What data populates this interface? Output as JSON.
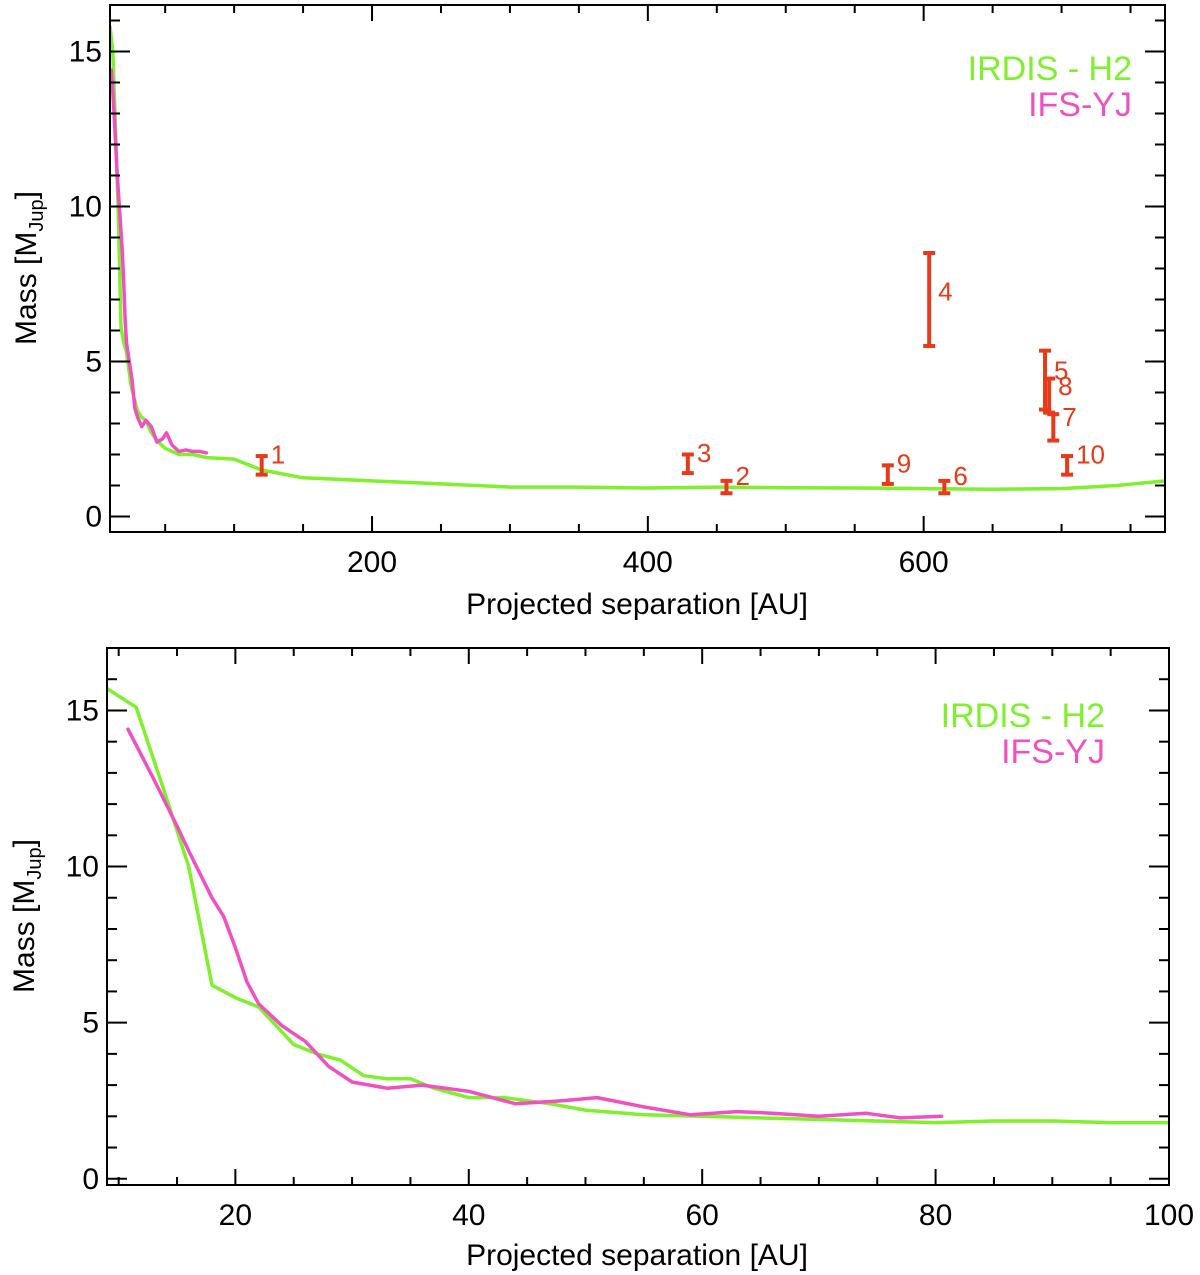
{
  "chart_data": [
    {
      "type": "line",
      "xlabel": "Projected separation [AU]",
      "ylabel": "Mass [M",
      "ylabel_sub": "Jup",
      "ylabel_close": "]",
      "xlim": [
        10,
        775
      ],
      "ylim": [
        -0.5,
        16.5
      ],
      "xticks": [
        200,
        400,
        600
      ],
      "xticks_minor_step": 50,
      "yticks": [
        0,
        5,
        10,
        15
      ],
      "yticks_minor_step": 1,
      "legend_position": "top-right",
      "series": [
        {
          "name": "IRDIS - H2",
          "color": "#7ef02c",
          "x": [
            10,
            12,
            14,
            16,
            18,
            20,
            22,
            25,
            27,
            30,
            33,
            36,
            40,
            45,
            50,
            55,
            60,
            70,
            80,
            100,
            120,
            150,
            200,
            250,
            300,
            350,
            400,
            450,
            500,
            550,
            600,
            650,
            700,
            740,
            775
          ],
          "y": [
            15.8,
            15,
            12.5,
            9.8,
            6.1,
            5.6,
            5.3,
            4.3,
            3.9,
            3.4,
            3.2,
            3.1,
            2.7,
            2.4,
            2.2,
            2.1,
            2.0,
            2.0,
            1.9,
            1.85,
            1.5,
            1.25,
            1.15,
            1.05,
            0.95,
            0.95,
            0.92,
            0.95,
            0.93,
            0.92,
            0.9,
            0.88,
            0.9,
            1.0,
            1.15
          ]
        },
        {
          "name": "IFS-YJ",
          "color": "#f050c0",
          "x": [
            11,
            13,
            15,
            16,
            18,
            19,
            20,
            21,
            22,
            24,
            26,
            28,
            30,
            33,
            36,
            40,
            44,
            48,
            51,
            55,
            60,
            65,
            70,
            75,
            80
          ],
          "y": [
            14.4,
            13,
            11.2,
            10.5,
            9.2,
            8.5,
            7.5,
            6.3,
            5.6,
            5.0,
            4.4,
            3.5,
            3.2,
            2.9,
            3.1,
            2.9,
            2.4,
            2.5,
            2.7,
            2.3,
            2.1,
            2.15,
            2.1,
            2.1,
            2.05
          ]
        }
      ],
      "points": [
        {
          "label": "1",
          "x": 120,
          "y": 1.65,
          "yerr_low": 0.3,
          "yerr_high": 0.3
        },
        {
          "label": "2",
          "x": 457,
          "y": 0.95,
          "yerr_low": 0.2,
          "yerr_high": 0.2
        },
        {
          "label": "3",
          "x": 429,
          "y": 1.7,
          "yerr_low": 0.3,
          "yerr_high": 0.3
        },
        {
          "label": "4",
          "x": 604,
          "y": 6.9,
          "yerr_low": 1.4,
          "yerr_high": 1.6
        },
        {
          "label": "5",
          "x": 688,
          "y": 4.35,
          "yerr_low": 0.9,
          "yerr_high": 1.0
        },
        {
          "label": "6",
          "x": 615,
          "y": 0.95,
          "yerr_low": 0.2,
          "yerr_high": 0.2
        },
        {
          "label": "7",
          "x": 694,
          "y": 2.85,
          "yerr_low": 0.4,
          "yerr_high": 0.45
        },
        {
          "label": "8",
          "x": 691,
          "y": 3.85,
          "yerr_low": 0.5,
          "yerr_high": 0.6
        },
        {
          "label": "9",
          "x": 574,
          "y": 1.35,
          "yerr_low": 0.3,
          "yerr_high": 0.3
        },
        {
          "label": "10",
          "x": 704,
          "y": 1.65,
          "yerr_low": 0.3,
          "yerr_high": 0.3
        }
      ],
      "points_color": "#e83a1a"
    },
    {
      "type": "line",
      "xlabel": "Projected separation [AU]",
      "ylabel": "Mass [M",
      "ylabel_sub": "Jup",
      "ylabel_close": "]",
      "xlim": [
        9,
        100
      ],
      "ylim": [
        -0.2,
        17
      ],
      "xticks": [
        20,
        40,
        60,
        80,
        100
      ],
      "xticks_minor_step": 5,
      "yticks": [
        0,
        5,
        10,
        15
      ],
      "yticks_minor_step": 1,
      "legend_position": "top-right",
      "series": [
        {
          "name": "IRDIS - H2",
          "color": "#7ef02c",
          "x": [
            9,
            11.5,
            14,
            16,
            18,
            20,
            22,
            25,
            27,
            29,
            31,
            33,
            35,
            37,
            40,
            43,
            47,
            50,
            55,
            60,
            65,
            70,
            75,
            80,
            85,
            90,
            95,
            100
          ],
          "y": [
            15.7,
            15.1,
            12.3,
            10.0,
            6.2,
            5.8,
            5.5,
            4.3,
            4.0,
            3.8,
            3.3,
            3.2,
            3.2,
            2.9,
            2.6,
            2.6,
            2.4,
            2.2,
            2.05,
            2.0,
            1.95,
            1.9,
            1.85,
            1.8,
            1.85,
            1.85,
            1.8,
            1.8
          ]
        },
        {
          "name": "IFS-YJ",
          "color": "#f050c0",
          "x": [
            10.8,
            13,
            15,
            16,
            18,
            19,
            20,
            21,
            22,
            24,
            26,
            28,
            30,
            33,
            36,
            40,
            44,
            48,
            51,
            55,
            59,
            63,
            66,
            70,
            74,
            77,
            80.5
          ],
          "y": [
            14.4,
            12.8,
            11.3,
            10.5,
            9.0,
            8.4,
            7.4,
            6.3,
            5.6,
            4.9,
            4.4,
            3.6,
            3.1,
            2.9,
            3.0,
            2.8,
            2.4,
            2.5,
            2.6,
            2.3,
            2.05,
            2.15,
            2.1,
            2.0,
            2.1,
            1.95,
            2.0
          ]
        }
      ]
    }
  ]
}
